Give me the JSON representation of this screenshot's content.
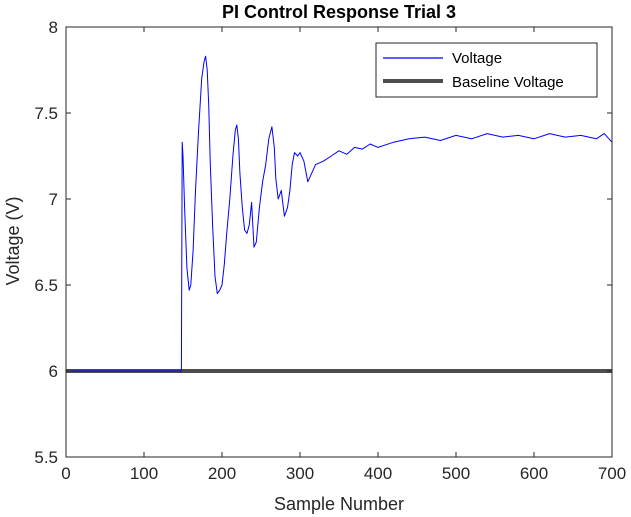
{
  "chart_data": {
    "type": "line",
    "title": "PI Control Response Trial 3",
    "xlabel": "Sample Number",
    "ylabel": "Voltage (V)",
    "xlim": [
      0,
      700
    ],
    "ylim": [
      5.5,
      8
    ],
    "xticks": [
      0,
      100,
      200,
      300,
      400,
      500,
      600,
      700
    ],
    "yticks": [
      5.5,
      6,
      6.5,
      7,
      7.5,
      8
    ],
    "xtick_labels": [
      "0",
      "100",
      "200",
      "300",
      "400",
      "500",
      "600",
      "700"
    ],
    "ytick_labels": [
      "5.5",
      "6",
      "6.5",
      "7",
      "7.5",
      "8"
    ],
    "grid": false,
    "legend_position": "top-right",
    "series": [
      {
        "name": "Voltage",
        "color": "#0000ff",
        "x": [
          0,
          147,
          148,
          149,
          150,
          152,
          155,
          158,
          160,
          163,
          166,
          170,
          174,
          177,
          179,
          181,
          183,
          185,
          188,
          191,
          194,
          197,
          200,
          203,
          206,
          210,
          214,
          217,
          219,
          221,
          223,
          226,
          229,
          232,
          235,
          238,
          241,
          244,
          248,
          252,
          256,
          260,
          264,
          267,
          269,
          272,
          276,
          280,
          284,
          287,
          290,
          293,
          297,
          300,
          305,
          310,
          315,
          320,
          330,
          340,
          350,
          360,
          370,
          380,
          390,
          400,
          420,
          440,
          460,
          480,
          500,
          520,
          540,
          560,
          580,
          600,
          620,
          640,
          660,
          680,
          690,
          700
        ],
        "y": [
          6.0,
          6.0,
          6.0,
          7.33,
          7.25,
          6.95,
          6.6,
          6.47,
          6.5,
          6.7,
          7.05,
          7.4,
          7.7,
          7.8,
          7.83,
          7.75,
          7.55,
          7.2,
          6.85,
          6.55,
          6.45,
          6.47,
          6.5,
          6.62,
          6.8,
          7.0,
          7.25,
          7.4,
          7.43,
          7.35,
          7.15,
          6.95,
          6.82,
          6.8,
          6.85,
          6.98,
          6.72,
          6.75,
          6.95,
          7.1,
          7.2,
          7.35,
          7.42,
          7.3,
          7.12,
          7.0,
          7.05,
          6.9,
          6.95,
          7.05,
          7.2,
          7.27,
          7.25,
          7.27,
          7.22,
          7.1,
          7.15,
          7.2,
          7.22,
          7.25,
          7.28,
          7.26,
          7.3,
          7.29,
          7.32,
          7.3,
          7.33,
          7.35,
          7.36,
          7.34,
          7.37,
          7.35,
          7.38,
          7.36,
          7.37,
          7.35,
          7.38,
          7.36,
          7.37,
          7.35,
          7.38,
          7.33
        ]
      },
      {
        "name": "Baseline Voltage",
        "color": "#4d4d4d",
        "x": [
          0,
          700
        ],
        "y": [
          6,
          6
        ]
      }
    ]
  }
}
